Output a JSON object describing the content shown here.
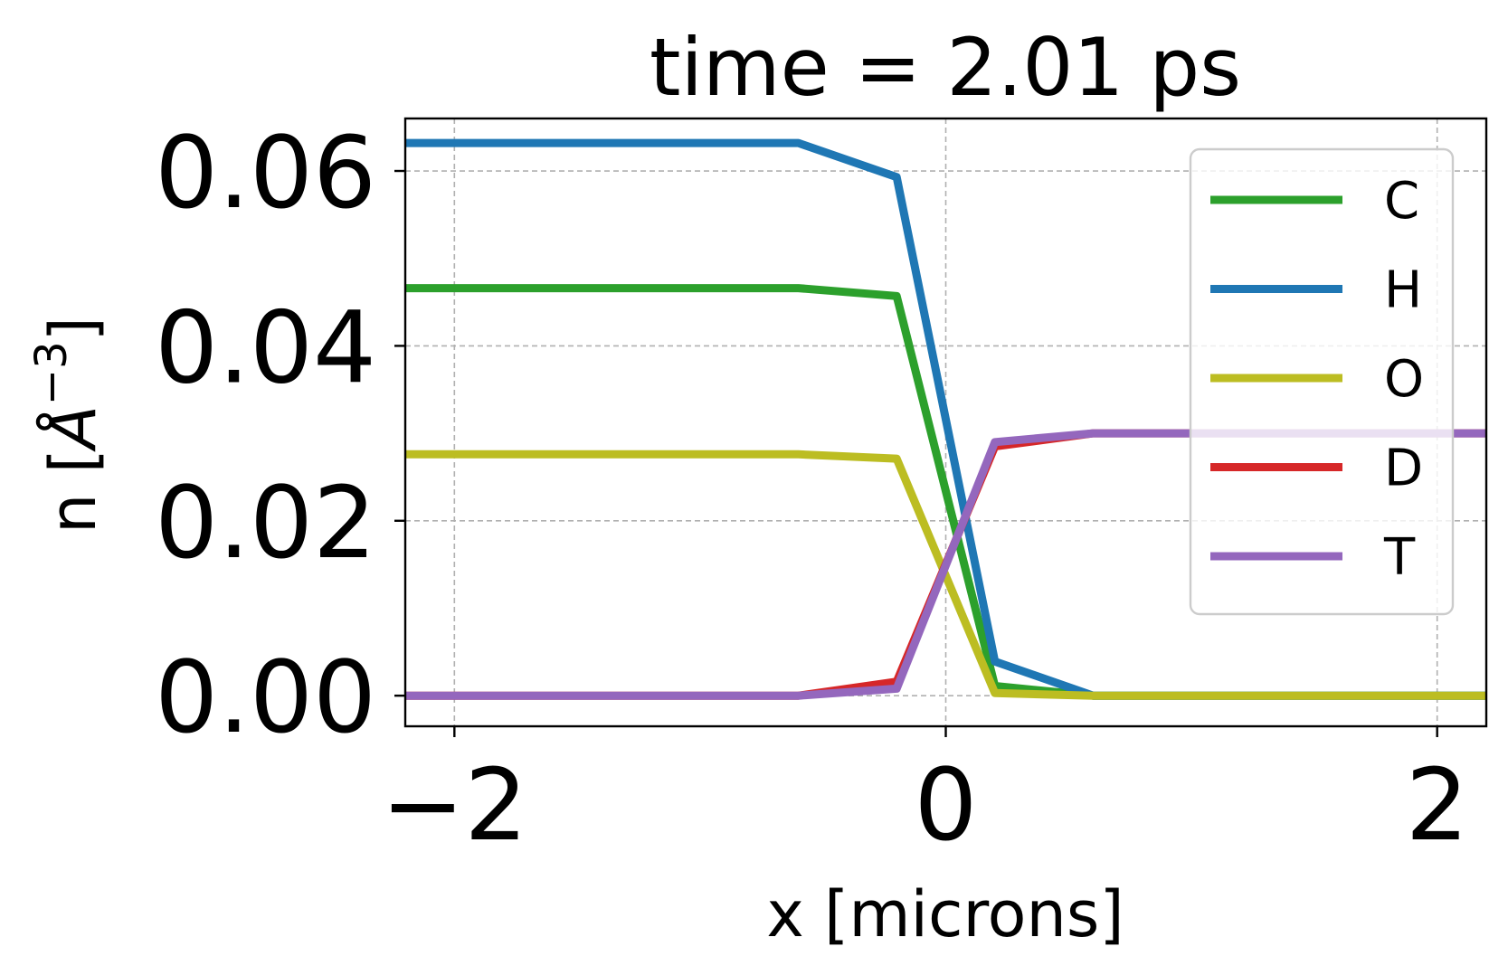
{
  "chart_data": {
    "type": "line",
    "title": "time =  2.01 ps",
    "xlabel": "x [microns]",
    "ylabel": "n [$\\AA^{-3}$]",
    "ylabel_parts": {
      "prefix": "n [",
      "base": "Å",
      "exp": "−3",
      "suffix": "]"
    },
    "xlim": [
      -2.2,
      2.2
    ],
    "ylim": [
      -0.0035,
      0.066
    ],
    "xticks": [
      -2,
      0,
      2
    ],
    "xtick_labels": [
      "−2",
      "0",
      "2"
    ],
    "yticks": [
      0.0,
      0.02,
      0.04,
      0.06
    ],
    "ytick_labels": [
      "0.00",
      "0.02",
      "0.04",
      "0.06"
    ],
    "grid": true,
    "legend_position": "upper right",
    "x": [
      -2.2,
      -0.6,
      -0.2,
      0.2,
      0.6,
      2.2
    ],
    "series": [
      {
        "name": "C",
        "color": "#2ca02c",
        "values": [
          0.0466,
          0.0466,
          0.0457,
          0.0011,
          0.0,
          0.0
        ]
      },
      {
        "name": "H",
        "color": "#1f77b4",
        "values": [
          0.0632,
          0.0632,
          0.0593,
          0.0039,
          0.0,
          0.0
        ]
      },
      {
        "name": "O",
        "color": "#bcbd22",
        "values": [
          0.0276,
          0.0276,
          0.0271,
          0.0003,
          0.0,
          0.0
        ]
      },
      {
        "name": "D",
        "color": "#d62728",
        "values": [
          0.0,
          0.0,
          0.0016,
          0.0285,
          0.03,
          0.03
        ]
      },
      {
        "name": "T",
        "color": "#9467bd",
        "values": [
          0.0,
          0.0,
          0.0008,
          0.029,
          0.03,
          0.03
        ]
      }
    ]
  }
}
